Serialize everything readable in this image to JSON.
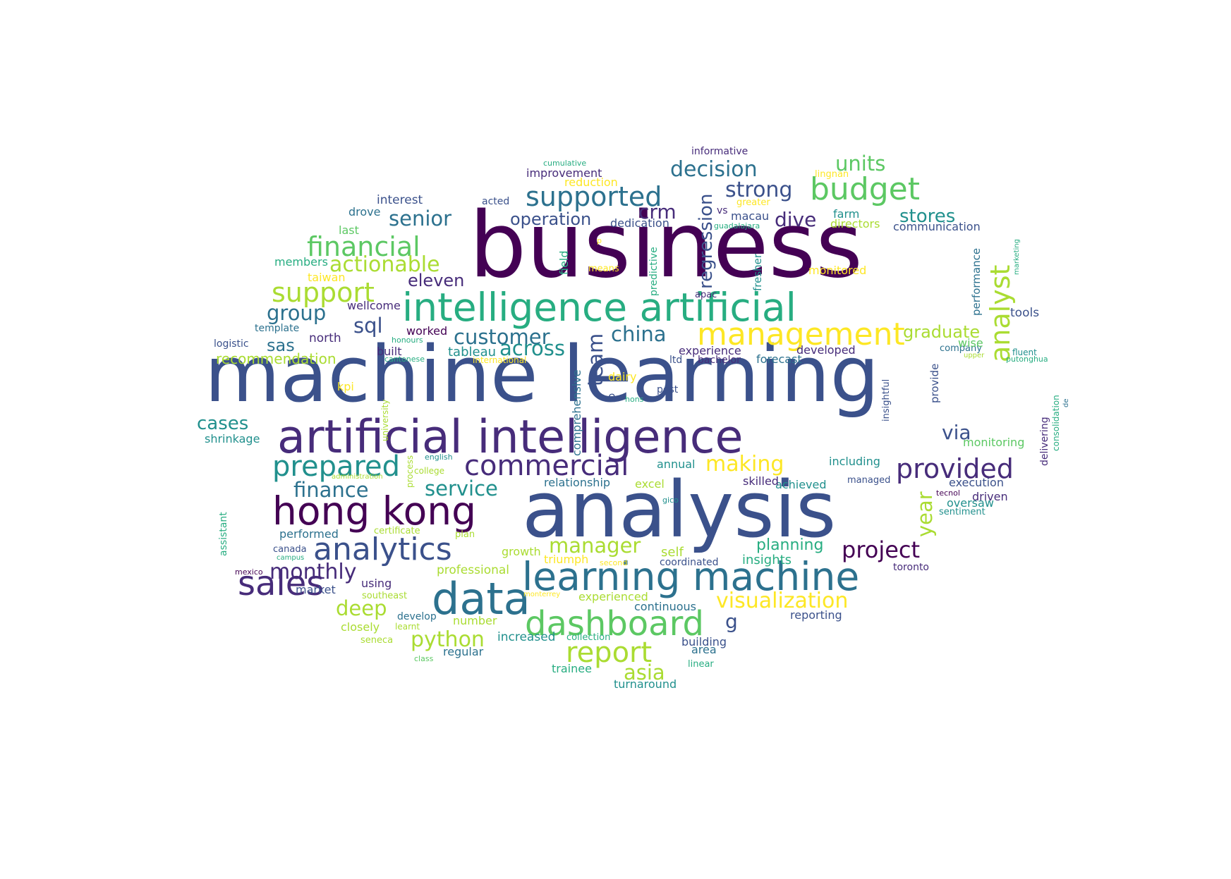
{
  "palette": [
    "#440154",
    "#472c7a",
    "#3b518b",
    "#2c718e",
    "#21908d",
    "#27ad81",
    "#5cc863",
    "#aadc32",
    "#fde725"
  ],
  "words": [
    {
      "text": "machine learning"
    },
    {
      "text": "business"
    },
    {
      "text": "analysis"
    },
    {
      "text": "artificial intelligence"
    },
    {
      "text": "intelligence artificial"
    },
    {
      "text": "learning machine"
    },
    {
      "text": "data"
    },
    {
      "text": "hong kong"
    },
    {
      "text": "dashboard"
    },
    {
      "text": "analytics"
    },
    {
      "text": "management"
    },
    {
      "text": "budget"
    },
    {
      "text": "sales"
    },
    {
      "text": "supported"
    },
    {
      "text": "report"
    },
    {
      "text": "commercial"
    },
    {
      "text": "prepared"
    },
    {
      "text": "provided"
    },
    {
      "text": "financial"
    },
    {
      "text": "support"
    },
    {
      "text": "analyst"
    },
    {
      "text": "regression"
    },
    {
      "text": "project"
    },
    {
      "text": "visualization"
    },
    {
      "text": "actionable"
    },
    {
      "text": "finance"
    },
    {
      "text": "service"
    },
    {
      "text": "decision"
    },
    {
      "text": "strong"
    },
    {
      "text": "senior"
    },
    {
      "text": "customer"
    },
    {
      "text": "python"
    },
    {
      "text": "monthly"
    },
    {
      "text": "units"
    },
    {
      "text": "manager"
    },
    {
      "text": "making"
    },
    {
      "text": "deep"
    },
    {
      "text": "asia"
    },
    {
      "text": "china"
    },
    {
      "text": "across"
    },
    {
      "text": "group"
    },
    {
      "text": "sql"
    },
    {
      "text": "year"
    },
    {
      "text": "team"
    },
    {
      "text": "via"
    },
    {
      "text": "crm"
    },
    {
      "text": "dive"
    },
    {
      "text": "stores"
    },
    {
      "text": "graduate"
    },
    {
      "text": "operation"
    },
    {
      "text": "eleven"
    },
    {
      "text": "cases"
    },
    {
      "text": "planning"
    },
    {
      "text": "sas"
    },
    {
      "text": "g"
    },
    {
      "text": "recommendation"
    },
    {
      "text": "insights"
    },
    {
      "text": "tableau"
    },
    {
      "text": "self"
    },
    {
      "text": "interest"
    },
    {
      "text": "drove"
    },
    {
      "text": "last"
    },
    {
      "text": "members"
    },
    {
      "text": "taiwan"
    },
    {
      "text": "wellcome"
    },
    {
      "text": "template"
    },
    {
      "text": "logistic"
    },
    {
      "text": "north"
    },
    {
      "text": "worked"
    },
    {
      "text": "honours"
    },
    {
      "text": "built"
    },
    {
      "text": "cantonese"
    },
    {
      "text": "international"
    },
    {
      "text": "kpi"
    },
    {
      "text": "shrinkage"
    },
    {
      "text": "university"
    },
    {
      "text": "process"
    },
    {
      "text": "english"
    },
    {
      "text": "administration"
    },
    {
      "text": "college"
    },
    {
      "text": "assistant"
    },
    {
      "text": "certificate"
    },
    {
      "text": "performed"
    },
    {
      "text": "plan"
    },
    {
      "text": "canada"
    },
    {
      "text": "campus"
    },
    {
      "text": "mexico"
    },
    {
      "text": "professional"
    },
    {
      "text": "using"
    },
    {
      "text": "market"
    },
    {
      "text": "southeast"
    },
    {
      "text": "monterrey"
    },
    {
      "text": "develop"
    },
    {
      "text": "learnt"
    },
    {
      "text": "closely"
    },
    {
      "text": "seneca"
    },
    {
      "text": "class"
    },
    {
      "text": "number"
    },
    {
      "text": "regular"
    },
    {
      "text": "increased"
    },
    {
      "text": "collection"
    },
    {
      "text": "trainee"
    },
    {
      "text": "turnaround"
    },
    {
      "text": "linear"
    },
    {
      "text": "area"
    },
    {
      "text": "building"
    },
    {
      "text": "continuous"
    },
    {
      "text": "experienced"
    },
    {
      "text": "second"
    },
    {
      "text": "triumph"
    },
    {
      "text": "growth"
    },
    {
      "text": "coordinated"
    },
    {
      "text": "reporting"
    },
    {
      "text": "toronto"
    },
    {
      "text": "sentiment"
    },
    {
      "text": "oversaw"
    },
    {
      "text": "driven"
    },
    {
      "text": "tecnol"
    },
    {
      "text": "execution"
    },
    {
      "text": "managed"
    },
    {
      "text": "achieved"
    },
    {
      "text": "skilled"
    },
    {
      "text": "gico"
    },
    {
      "text": "excel"
    },
    {
      "text": "relationship"
    },
    {
      "text": "annual"
    },
    {
      "text": "including"
    },
    {
      "text": "monitoring"
    },
    {
      "text": "delivering"
    },
    {
      "text": "consolidation"
    },
    {
      "text": "de"
    },
    {
      "text": "insightful"
    },
    {
      "text": "provide"
    },
    {
      "text": "hons"
    },
    {
      "text": "e"
    },
    {
      "text": "post"
    },
    {
      "text": "dairy"
    },
    {
      "text": "comprehensive"
    },
    {
      "text": "ltd"
    },
    {
      "text": "bachelor"
    },
    {
      "text": "forecast"
    },
    {
      "text": "experience"
    },
    {
      "text": "developed"
    },
    {
      "text": "company"
    },
    {
      "text": "wise"
    },
    {
      "text": "upper"
    },
    {
      "text": "fluent"
    },
    {
      "text": "putonghua"
    },
    {
      "text": "tools"
    },
    {
      "text": "performance"
    },
    {
      "text": "marketing"
    },
    {
      "text": "communication"
    },
    {
      "text": "directors"
    },
    {
      "text": "farm"
    },
    {
      "text": "monitored"
    },
    {
      "text": "fresher"
    },
    {
      "text": "apac"
    },
    {
      "text": "predictive"
    },
    {
      "text": "means"
    },
    {
      "text": "p"
    },
    {
      "text": "field"
    },
    {
      "text": "dedication"
    },
    {
      "text": "macau"
    },
    {
      "text": "guadalajara"
    },
    {
      "text": "vs"
    },
    {
      "text": "greater"
    },
    {
      "text": "lingnan"
    },
    {
      "text": "informative"
    },
    {
      "text": "cumulative"
    },
    {
      "text": "improvement"
    },
    {
      "text": "reduction"
    },
    {
      "text": "acted"
    }
  ]
}
